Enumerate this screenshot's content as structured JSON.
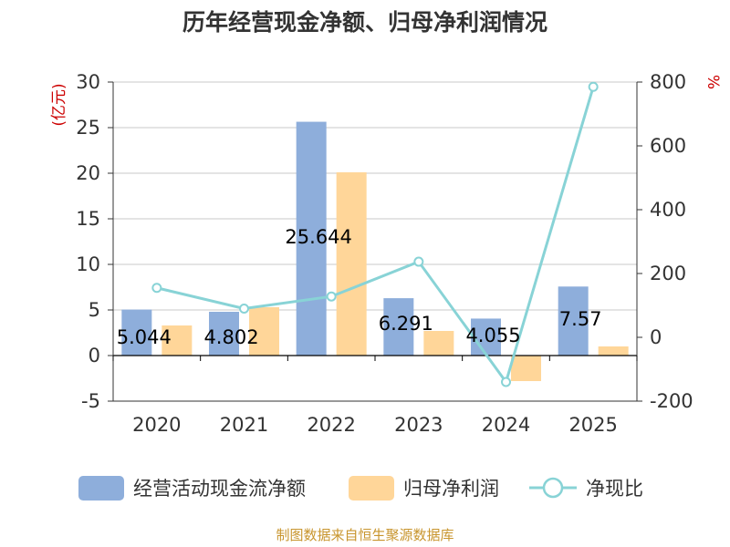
{
  "chart_data": {
    "type": "bar",
    "title": "历年经营现金净额、归母净利润情况",
    "categories": [
      "2020",
      "2021",
      "2022",
      "2023",
      "2024",
      "2025"
    ],
    "series": [
      {
        "name": "经营活动现金流净额",
        "kind": "bar",
        "axis": "left",
        "color": "#8eaedb",
        "values": [
          5.044,
          4.802,
          25.644,
          6.291,
          4.055,
          7.57
        ],
        "labels": [
          "5.044",
          "4.802",
          "25.644",
          "6.291",
          "4.055",
          "7.57"
        ]
      },
      {
        "name": "归母净利润",
        "kind": "bar",
        "axis": "left",
        "color": "#ffd699",
        "values": [
          3.3,
          5.3,
          20.1,
          2.7,
          -2.8,
          1.0
        ]
      },
      {
        "name": "净现比",
        "kind": "line",
        "axis": "right",
        "color": "#88d3d6",
        "values": [
          155,
          90,
          128,
          237,
          -140,
          785
        ]
      }
    ],
    "y_left": {
      "label": "(亿元)",
      "min": -5,
      "max": 30,
      "ticks": [
        -5,
        0,
        5,
        10,
        15,
        20,
        25,
        30
      ]
    },
    "y_right": {
      "label": "%",
      "min": -200,
      "max": 800,
      "ticks": [
        -200,
        0,
        200,
        400,
        600,
        800
      ]
    },
    "legend_position": "bottom",
    "grid": true
  },
  "source": "制图数据来自恒生聚源数据库"
}
